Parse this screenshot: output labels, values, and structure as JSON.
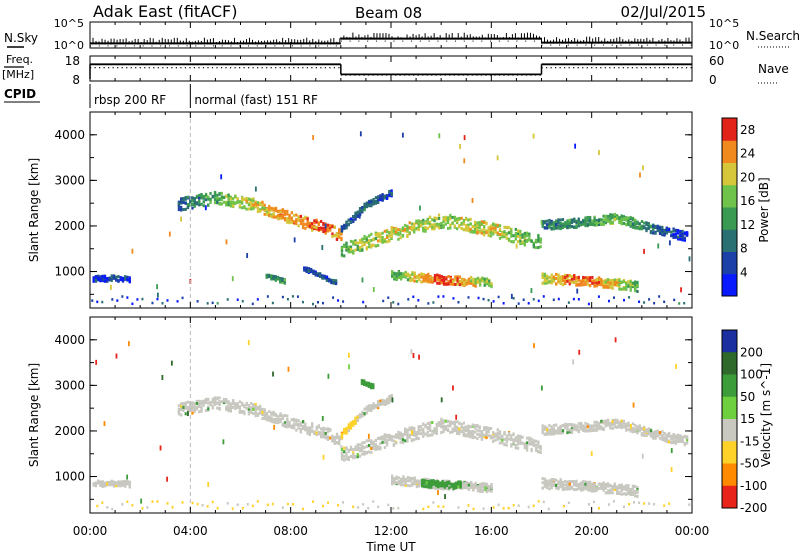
{
  "header": {
    "station": "Adak East (fitACF)",
    "beam": "Beam 08",
    "date": "02/Jul/2015"
  },
  "chart_data": [
    {
      "type": "line",
      "name": "noise-panel",
      "left_label": "N.Sky",
      "right_label": "N.Search",
      "left_ticks": [
        "10^5",
        "10^0"
      ],
      "right_ticks": [
        "10^5",
        "10^0"
      ],
      "segments_log10": [
        {
          "t0": 0.0,
          "t1": 10.0,
          "value": 0.4
        },
        {
          "t0": 10.0,
          "t1": 18.0,
          "value": 1.6
        },
        {
          "t0": 18.0,
          "t1": 24.0,
          "value": 0.6
        }
      ]
    },
    {
      "type": "line",
      "name": "frequency-panel",
      "left_label": "Freq.",
      "left_unit": "[MHz]",
      "right_label": "Nave",
      "left_ticks": [
        "18",
        "8"
      ],
      "right_ticks": [
        "60",
        "0"
      ],
      "ylim_freq": [
        8,
        18
      ],
      "ylim_nave": [
        0,
        60
      ],
      "freq_segments": [
        {
          "t0": 0.0,
          "t1": 10.0,
          "value": 15.0
        },
        {
          "t0": 10.0,
          "t1": 18.0,
          "value": 10.2
        },
        {
          "t0": 18.0,
          "t1": 24.0,
          "value": 15.0
        }
      ],
      "nave_segments": [
        {
          "t0": 0.0,
          "t1": 10.0,
          "value": 34
        },
        {
          "t0": 10.0,
          "t1": 18.0,
          "value": 13
        },
        {
          "t0": 18.0,
          "t1": 24.0,
          "value": 34
        }
      ]
    },
    {
      "type": "table",
      "name": "cpid-panel",
      "label": "CPID",
      "modes": [
        {
          "t_start": 0.0,
          "text": "rbsp 200 RF"
        },
        {
          "t_start": 4.0,
          "text": "normal (fast) 151 RF"
        }
      ]
    },
    {
      "type": "heatmap",
      "name": "power-panel",
      "ylabel": "Slant Range [km]",
      "ylim": [
        200,
        4500
      ],
      "yticks": [
        1000,
        2000,
        3000,
        4000
      ],
      "colorbar": {
        "label": "Power [dB]",
        "ticks": [
          4,
          8,
          12,
          16,
          20,
          24,
          28
        ],
        "range": [
          0,
          30
        ]
      },
      "bands": [
        {
          "t": [
            3.5,
            5.0,
            6.5,
            8.0,
            9.5,
            10.0
          ],
          "r": [
            2500,
            2650,
            2500,
            2200,
            1950,
            1800
          ],
          "w": 260,
          "v": [
            8,
            14,
            20,
            24,
            26,
            22
          ]
        },
        {
          "t": [
            10.0,
            12.0,
            14.0,
            16.0,
            18.0
          ],
          "r": [
            1500,
            1850,
            2150,
            1950,
            1650
          ],
          "w": 300,
          "v": [
            16,
            20,
            18,
            20,
            14
          ]
        },
        {
          "t": [
            18.0,
            19.5,
            21.0,
            22.5,
            23.8
          ],
          "r": [
            2050,
            2100,
            2200,
            1950,
            1800
          ],
          "w": 200,
          "v": [
            10,
            12,
            16,
            8,
            4
          ]
        },
        {
          "t": [
            10.0,
            11.0,
            12.0
          ],
          "r": [
            1950,
            2500,
            2750
          ],
          "w": 140,
          "v": [
            6,
            8,
            6
          ]
        },
        {
          "t": [
            12.0,
            14.0,
            16.0
          ],
          "r": [
            960,
            850,
            780
          ],
          "w": 190,
          "v": [
            14,
            28,
            16
          ]
        },
        {
          "t": [
            18.0,
            19.5,
            21.0,
            21.8
          ],
          "r": [
            880,
            830,
            760,
            700
          ],
          "w": 220,
          "v": [
            18,
            26,
            20,
            14
          ]
        },
        {
          "t": [
            0.1,
            1.0,
            1.6
          ],
          "r": [
            870,
            880,
            860
          ],
          "w": 120,
          "v": [
            4,
            6,
            4
          ]
        },
        {
          "t": [
            7.0,
            7.8
          ],
          "r": [
            940,
            800
          ],
          "w": 90,
          "v": [
            10,
            12
          ]
        },
        {
          "t": [
            8.5,
            9.8
          ],
          "r": [
            1100,
            780
          ],
          "w": 90,
          "v": [
            6,
            8
          ]
        }
      ]
    },
    {
      "type": "heatmap",
      "name": "velocity-panel",
      "ylabel": "Slant Range [km]",
      "ylim": [
        200,
        4500
      ],
      "yticks": [
        1000,
        2000,
        3000,
        4000
      ],
      "colorbar": {
        "label": "Velocity [m s^-1]",
        "ticks": [
          "200",
          "100",
          "50",
          "15",
          "-15",
          "-50",
          "-100",
          "-200"
        ]
      },
      "bands": [
        {
          "t": [
            3.5,
            5.0,
            6.5,
            8.0,
            9.5,
            10.0
          ],
          "r": [
            2500,
            2650,
            2500,
            2200,
            1950,
            1800
          ],
          "w": 260,
          "v": [
            0,
            0,
            0,
            0,
            0,
            0
          ]
        },
        {
          "t": [
            10.0,
            12.0,
            14.0,
            16.0,
            18.0
          ],
          "r": [
            1500,
            1850,
            2150,
            1950,
            1650
          ],
          "w": 300,
          "v": [
            0,
            0,
            0,
            0,
            0
          ]
        },
        {
          "t": [
            18.0,
            19.5,
            21.0,
            22.5,
            23.8
          ],
          "r": [
            2050,
            2100,
            2200,
            1950,
            1800
          ],
          "w": 200,
          "v": [
            0,
            0,
            0,
            0,
            0
          ]
        },
        {
          "t": [
            10.0,
            11.0,
            12.0
          ],
          "r": [
            1950,
            2500,
            2750
          ],
          "w": 140,
          "v": [
            -40,
            0,
            0
          ]
        },
        {
          "t": [
            12.0,
            14.0,
            16.0
          ],
          "r": [
            960,
            850,
            780
          ],
          "w": 190,
          "v": [
            0,
            0,
            0
          ]
        },
        {
          "t": [
            18.0,
            19.5,
            21.0,
            21.8
          ],
          "r": [
            880,
            830,
            760,
            700
          ],
          "w": 220,
          "v": [
            0,
            0,
            0,
            0
          ]
        },
        {
          "t": [
            0.1,
            1.0,
            1.6
          ],
          "r": [
            870,
            880,
            860
          ],
          "w": 120,
          "v": [
            0,
            0,
            0
          ]
        },
        {
          "t": [
            13.2,
            14.0,
            14.8
          ],
          "r": [
            880,
            860,
            840
          ],
          "w": 150,
          "v": [
            40,
            40,
            40
          ]
        },
        {
          "t": [
            10.8,
            11.3
          ],
          "r": [
            3120,
            3000
          ],
          "w": 110,
          "v": [
            40,
            40
          ]
        }
      ]
    }
  ],
  "x_axis": {
    "label": "Time UT",
    "range_hours": [
      0,
      24
    ],
    "tick_labels": [
      "00:00",
      "04:00",
      "08:00",
      "12:00",
      "16:00",
      "20:00",
      "00:00"
    ]
  },
  "colors": {
    "power_scale": [
      "#0a1aff",
      "#1d3fa8",
      "#2a6f72",
      "#3a9a52",
      "#6fc24a",
      "#d6c63a",
      "#f08a1e",
      "#e2231a"
    ],
    "velocity_scale": [
      "#1c2fa0",
      "#2f6a2c",
      "#3c9c3a",
      "#6fd03f",
      "#c8c8c0",
      "#ffd22a",
      "#ff8a00",
      "#e8231a"
    ],
    "frame": "#000000"
  }
}
